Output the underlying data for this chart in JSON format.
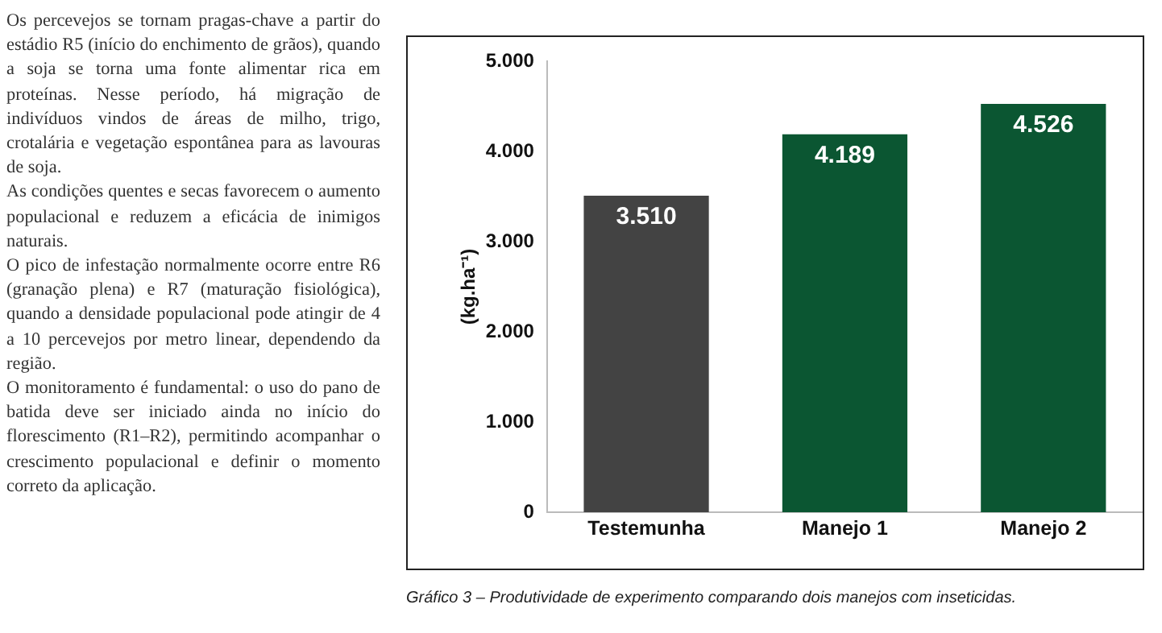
{
  "chart_data": {
    "type": "bar",
    "ylabel": "(kg.ha⁻¹)",
    "categories": [
      "Testemunha",
      "Manejo 1",
      "Manejo 2"
    ],
    "values": [
      3510,
      4189,
      4526
    ],
    "colors": [
      "#434343",
      "#0b5632",
      "#0b5632"
    ],
    "value_labels": [
      "3.510",
      "4.189",
      "4.526"
    ],
    "ylim": [
      0,
      5000
    ],
    "yticks": [
      {
        "value": 0,
        "label": "0"
      },
      {
        "value": 1000,
        "label": "1.000"
      },
      {
        "value": 2000,
        "label": "2.000"
      },
      {
        "value": 3000,
        "label": "3.000"
      },
      {
        "value": 4000,
        "label": "4.000"
      },
      {
        "value": 5000,
        "label": "5.000"
      }
    ],
    "grid": false,
    "legend": false,
    "annotations": [
      "Gráfico 3 – Produtividade de experimento comparando dois manejos com inseticidas.",
      "Os percevejos se tornam pragas-chave a partir do estádio R5 (início do enchimento de grãos), quando a soja se torna uma fonte alimentar rica em proteínas. Nesse período, há migração de indivíduos vindos de áreas de milho, trigo, crotalária e vegetação espontânea para as lavouras de soja.\nAs condições quentes e secas favorecem o aumento populacional e reduzem a eficácia de inimigos naturais.\nO pico de infestação normalmente ocorre entre R6 (granação plena) e R7 (maturação fisiológica), quando a densidade populacional pode atingir de 4 a 10 percevejos por metro linear, dependendo da região.\nO monitoramento é fundamental: o uso do pano de batida deve ser iniciado ainda no início do florescimento (R1–R2), permitindo acompanhar o crescimento populacional e definir o momento correto da aplicação."
    ]
  }
}
